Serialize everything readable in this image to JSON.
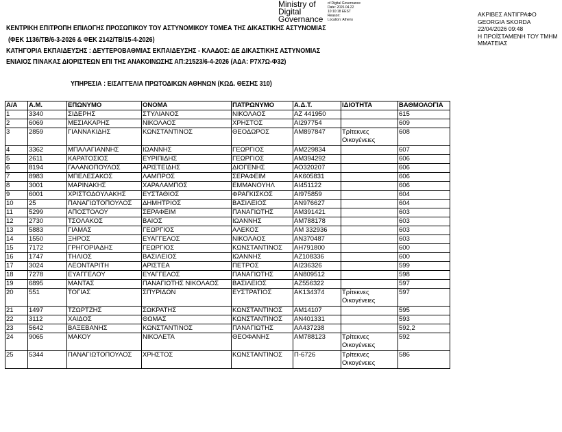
{
  "signature": {
    "org_lines": [
      "Ministry of",
      "Digital",
      "Governance"
    ],
    "details": [
      "of Digital Governance",
      "Date: 2026.04.22",
      "10:10:18 EEST",
      "Reason:",
      "Location: Athens"
    ]
  },
  "stamp": [
    "ΑΚΡΙΒΕΣ ΑΝΤΙΓΡΑΦΟ",
    "GEORGIA SKORDA",
    "22/04/2026 09:48",
    "Η ΠΡΟΪΣΤΑΜΕΝΗ ΤΟΥ ΤΜΗΜ",
    "ΜΜΑΤΕΙΑΣ"
  ],
  "header": {
    "line1": "ΚΕΝΤΡΙΚΗ ΕΠΙΤΡΟΠΗ ΕΠΙΛΟΓΗΣ ΠΡΟΣΩΠΙΚΟΥ ΤΟΥ ΑΣΤΥΝΟΜΙΚΟΥ ΤΟΜΕΑ ΤΗΣ ΔΙΚΑΣΤΙΚΗΣ ΑΣΤΥΝΟΜΙΑΣ",
    "line2": "(ΦΕΚ 1136/ΤΒ/6-3-2026 & ΦΕΚ 2142/ΤΒ/15-4-2026)",
    "line3": "ΚΑΤΗΓΟΡΙΑ ΕΚΠΑΙΔΕΥΣΗΣ : ΔΕΥΤΕΡΟΒΑΘΜΙΑΣ  ΕΚΠΑΙΔΕΥΣΗΣ - ΚΛΑΔΟΣ: ΔΕ ΔΙΚΑΣΤΙΚΗΣ ΑΣΤΥΝΟΜΙΑΣ",
    "line4": "ΕΝΙΑΙΟΣ ΠΙΝΑΚΑΣ ΔΙΟΡΙΣΤΕΩΝ   ΕΠΙ ΤΗΣ ΑΝΑΚΟΙΝΩΣΗΣ  ΑΠ:21523/6-4-2026  (ΑΔΑ: Ρ7Χ7Ω-Φ32)",
    "service": "ΥΠΗΡΕΣΙΑ : ΕΙΣΑΓΓΕΛΙΑ ΠΡΩΤΟΔΙΚΩΝ ΑΘΗΝΩΝ (ΚΩΔ. ΘΕΣΗΣ 310)"
  },
  "table": {
    "columns": [
      "Α/Α",
      "Α.Μ.",
      "ΕΠΩΝΥΜΟ",
      "ΟΝΟΜΑ",
      "ΠΑΤΡΩΝΥΜΟ",
      "Α.Δ.Τ.",
      "ΙΔΙΟΤΗΤΑ",
      "ΒΑΘΜΟΛΟΓΙΑ"
    ],
    "rows": [
      [
        "1",
        "3340",
        "ΣΙΔΕΡΗΣ",
        "ΣΤΥΛΙΑΝΟΣ",
        "ΝΙΚΟΛΑΟΣ",
        "ΑΖ 441950",
        "",
        "615"
      ],
      [
        "2",
        "6069",
        "ΜΕΣΙΑΚΑΡΗΣ",
        "ΝΙΚΟΛΑΟΣ",
        "ΧΡΗΣΤΟΣ",
        "ΑΙ297754",
        "",
        "609"
      ],
      [
        "3",
        "2859",
        "ΓΙΑΝΝΑΚΙΔΗΣ",
        "ΚΩΝΣΤΑΝΤΙΝΟΣ",
        "ΘΕΟΔΩΡΟΣ",
        "ΑΜ897847",
        "Τρίτεκνες Οικογένειες",
        "608"
      ],
      [
        "4",
        "3362",
        "ΜΠΑΛΑΓΙΑΝΝΗΣ",
        "ΙΩΑΝΝΗΣ",
        "ΓΕΩΡΓΙΟΣ",
        "ΑΜ229834",
        "",
        "607"
      ],
      [
        "5",
        "2611",
        "ΚΑΡΑΤΟΣΙΟΣ",
        "ΕΥΡΙΠΙΔΗΣ",
        "ΓΕΩΡΓΙΟΣ",
        "ΑΜ394292",
        "",
        "606"
      ],
      [
        "6",
        "8194",
        "ΓΑΛΑΝΟΠΟΥΛΟΣ",
        "ΑΡΙΣΤΕΙΔΗΣ",
        "ΔΙΟΓΕΝΗΣ",
        "ΑΟ320207",
        "",
        "606"
      ],
      [
        "7",
        "8983",
        "ΜΠΕΛΕΣΑΚΟΣ",
        "ΛΑΜΠΡΟΣ",
        "ΣΕΡΑΦΕΙΜ",
        "ΑΚ605831",
        "",
        "606"
      ],
      [
        "8",
        "3001",
        "ΜΑΡΙΝΑΚΗΣ",
        "ΧΑΡΑΛΑΜΠΟΣ",
        "ΕΜΜΑΝΟΥΗΛ",
        "ΑΙ451122",
        "",
        "606"
      ],
      [
        "9",
        "6001",
        "ΧΡΙΣΤΟΔΟΥΛΑΚΗΣ",
        "ΕΥΣΤΑΘΙΟΣ",
        "ΦΡΑΓΚΙΣΚΟΣ",
        "ΑΙ975859",
        "",
        "604"
      ],
      [
        "10",
        "25",
        "ΠΑΝΑΓΙΩΤΟΠΟΥΛΟΣ",
        "ΔΗΜΗΤΡΙΟΣ",
        "ΒΑΣΙΛΕΙΟΣ",
        "ΑΝ976627",
        "",
        "604"
      ],
      [
        "11",
        "5299",
        "ΑΠΟΣΤΟΛΟΥ",
        "ΣΕΡΑΦΕΙΜ",
        "ΠΑΝΑΓΙΩΤΗΣ",
        "ΑΜ391421",
        "",
        "603"
      ],
      [
        "12",
        "2730",
        "ΤΣΟΛΑΚΟΣ",
        "ΒΑΙΟΣ",
        "ΙΩΑΝΝΗΣ",
        "ΑΜ788178",
        "",
        "603"
      ],
      [
        "13",
        "5883",
        "ΓΙΑΜΑΣ",
        "ΓΕΩΡΓΙΟΣ",
        "ΑΛΕΚΟΣ",
        "ΑΜ 332936",
        "",
        "603"
      ],
      [
        "14",
        "1550",
        "ΞΗΡΟΣ",
        "ΕΥΑΓΓΕΛΟΣ",
        "ΝΙΚΟΛΑΟΣ",
        "ΑΝ370487",
        "",
        "603"
      ],
      [
        "15",
        "7172",
        "ΓΡΗΓΟΡΙΑΔΗΣ",
        "ΓΕΩΡΓΙΟΣ",
        "ΚΩΝΣΤΑΝΤΙΝΟΣ",
        "ΑΗ791800",
        "",
        "600"
      ],
      [
        "16",
        "1747",
        "ΤΗΛΙΟΣ",
        "ΒΑΣΙΛΕΙΟΣ",
        "ΙΩΑΝΝΗΣ",
        "ΑΖ108336",
        "",
        "600"
      ],
      [
        "17",
        "3024",
        "ΛΕΟΝΤΑΡΙΤΗ",
        "ΑΡΙΣΤΕΑ",
        "ΠΕΤΡΟΣ",
        "ΑΙ236326",
        "",
        "599"
      ],
      [
        "18",
        "7278",
        "ΕΥΑΓΓΕΛΟΥ",
        "ΕΥΑΓΓΕΛΟΣ",
        "ΠΑΝΑΓΙΩΤΗΣ",
        "ΑΝ809512",
        "",
        "598"
      ],
      [
        "19",
        "6895",
        "ΜΑΝΤΑΣ",
        "ΠΑΝΑΓΙΩΤΗΣ ΝΙΚΟΛΑΟΣ",
        "ΒΑΣΙΛΕΙΟΣ",
        "ΑΖ556322",
        "",
        "597"
      ],
      [
        "20",
        "551",
        "ΤΟΓΙΑΣ",
        "ΣΠΥΡΙΔΩΝ",
        "ΕΥΣΤΡΑΤΙΟΣ",
        "ΑΚ134374",
        "Τρίτεκνες Οικογένειες",
        "597"
      ],
      [
        "21",
        "1497",
        "ΤΖΩΡΤΖΗΣ",
        "ΣΩΚΡΑΤΗΣ",
        "ΚΩΝΣΤΑΝΤΙΝΟΣ",
        "ΑΜ14107",
        "",
        "595"
      ],
      [
        "22",
        "3112",
        "ΧΑΙΔΟΣ",
        "ΘΩΜΑΣ",
        "ΚΩΝΣΤΑΝΤΙΝΟΣ",
        "ΑΝ401331",
        "",
        "593"
      ],
      [
        "23",
        "5642",
        "ΒΑΞΕΒΑΝΗΣ",
        "ΚΩΝΣΤΑΝΤΙΝΟΣ",
        "ΠΑΝΑΓΙΩΤΗΣ",
        "ΑΑ437238",
        "",
        "592,2"
      ],
      [
        "24",
        "9065",
        "ΜΑΚΟΥ",
        "ΝΙΚΟΛΕΤΑ",
        "ΘΕΟΦΑΝΗΣ",
        "ΑΜ788123",
        "Τρίτεκνες Οικογένειες",
        "592"
      ],
      [
        "25",
        "5344",
        "ΠΑΝΑΓΙΩΤΟΠΟΥΛΟΣ",
        "ΧΡΗΣΤΟΣ",
        "ΚΩΝΣΤΑΝΤΙΝΟΣ",
        "Π-6726",
        "Τρίτεκνες Οικογένειες",
        "586"
      ]
    ]
  }
}
